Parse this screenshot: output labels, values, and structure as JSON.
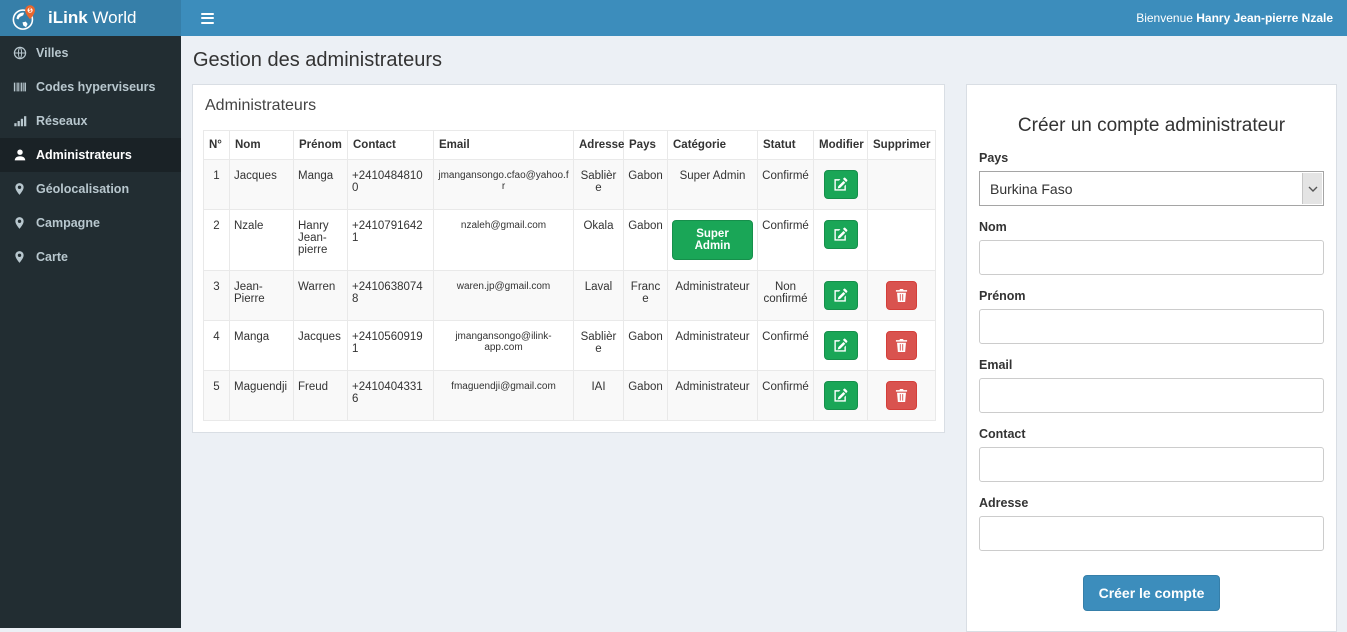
{
  "brand": {
    "name_bold": "iLink",
    "name_rest": "World"
  },
  "topbar": {
    "welcome_prefix": "Bienvenue",
    "welcome_name": "Hanry Jean-pierre Nzale"
  },
  "sidebar": {
    "items": [
      {
        "id": "villes",
        "label": "Villes",
        "icon": "globe-icon",
        "active": false
      },
      {
        "id": "codes-hyperviseurs",
        "label": "Codes hyperviseurs",
        "icon": "barcode-icon",
        "active": false
      },
      {
        "id": "reseaux",
        "label": "Réseaux",
        "icon": "signal-bars-icon",
        "active": false
      },
      {
        "id": "administrateurs",
        "label": "Administrateurs",
        "icon": "user-icon",
        "active": true
      },
      {
        "id": "geolocalisation",
        "label": "Géolocalisation",
        "icon": "map-marker-icon",
        "active": false
      },
      {
        "id": "campagne",
        "label": "Campagne",
        "icon": "map-marker-icon",
        "active": false
      },
      {
        "id": "carte",
        "label": "Carte",
        "icon": "map-marker-icon",
        "active": false
      }
    ]
  },
  "page": {
    "title": "Gestion des administrateurs"
  },
  "admin_table": {
    "box_title": "Administrateurs",
    "columns": [
      "N°",
      "Nom",
      "Prénom",
      "Contact",
      "Email",
      "Adresse",
      "Pays",
      "Catégorie",
      "Statut",
      "Modifier",
      "Supprimer"
    ],
    "rows": [
      {
        "num": "1",
        "nom": "Jacques",
        "prenom": "Manga",
        "contact": "+24104848100",
        "email": "jmangansongo.cfao@yahoo.fr",
        "adresse": "Sablière",
        "pays": "Gabon",
        "categorie": "Super Admin",
        "categorie_style": "text",
        "statut": "Confirmé",
        "has_delete": false
      },
      {
        "num": "2",
        "nom": "Nzale",
        "prenom": "Hanry Jean-pierre",
        "contact": "+24107916421",
        "email": "nzaleh@gmail.com",
        "adresse": "Okala",
        "pays": "Gabon",
        "categorie": "Super Admin",
        "categorie_style": "button",
        "statut": "Confirmé",
        "has_delete": false
      },
      {
        "num": "3",
        "nom": "Jean-Pierre",
        "prenom": "Warren",
        "contact": "+24106380748",
        "email": "waren.jp@gmail.com",
        "adresse": "Laval",
        "pays": "France",
        "categorie": "Administrateur",
        "categorie_style": "text",
        "statut": "Non confirmé",
        "has_delete": true
      },
      {
        "num": "4",
        "nom": "Manga",
        "prenom": "Jacques",
        "contact": "+24105609191",
        "email": "jmangansongo@ilink-app.com",
        "adresse": "Sablière",
        "pays": "Gabon",
        "categorie": "Administrateur",
        "categorie_style": "text",
        "statut": "Confirmé",
        "has_delete": true
      },
      {
        "num": "5",
        "nom": "Maguendji",
        "prenom": "Freud",
        "contact": "+24104043316",
        "email": "fmaguendji@gmail.com",
        "adresse": "IAI",
        "pays": "Gabon",
        "categorie": "Administrateur",
        "categorie_style": "text",
        "statut": "Confirmé",
        "has_delete": true
      }
    ]
  },
  "create_form": {
    "title": "Créer un compte administrateur",
    "fields": [
      {
        "id": "pays",
        "label": "Pays",
        "type": "select",
        "value": "Burkina Faso"
      },
      {
        "id": "nom",
        "label": "Nom",
        "type": "text",
        "value": "",
        "placeholder": ""
      },
      {
        "id": "prenom",
        "label": "Prénom",
        "type": "text",
        "value": "",
        "placeholder": ""
      },
      {
        "id": "email",
        "label": "Email",
        "type": "text",
        "value": "",
        "placeholder": ""
      },
      {
        "id": "contact",
        "label": "Contact",
        "type": "text",
        "value": "",
        "placeholder": ""
      },
      {
        "id": "adresse",
        "label": "Adresse",
        "type": "text",
        "value": "",
        "placeholder": ""
      }
    ],
    "submit_label": "Créer le compte"
  },
  "colors": {
    "navbar_blue": "#3c8dbc",
    "logo_blue": "#367fa9",
    "sidebar_dark": "#222d32",
    "sidebar_active": "#1a2226",
    "sidebar_text": "#b8c7ce",
    "content_bg": "#ecf0f5",
    "success_green": "#1aa657",
    "danger_red": "#d9534f",
    "pin_orange": "#e8662d"
  }
}
